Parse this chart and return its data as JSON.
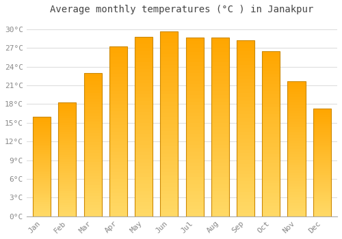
{
  "title": "Average monthly temperatures (°C ) in Janakpur",
  "months": [
    "Jan",
    "Feb",
    "Mar",
    "Apr",
    "May",
    "Jun",
    "Jul",
    "Aug",
    "Sep",
    "Oct",
    "Nov",
    "Dec"
  ],
  "values": [
    16.0,
    18.3,
    23.0,
    27.2,
    28.8,
    29.6,
    28.7,
    28.7,
    28.2,
    26.5,
    21.7,
    17.3
  ],
  "bar_color_main": "#FFA500",
  "bar_color_light": "#FFD966",
  "bar_edge_color": "#CC8800",
  "background_color": "#FFFFFF",
  "grid_color": "#DDDDDD",
  "ytick_values": [
    0,
    3,
    6,
    9,
    12,
    15,
    18,
    21,
    24,
    27,
    30
  ],
  "ylim": [
    0,
    31.5
  ],
  "title_fontsize": 10,
  "tick_fontsize": 8,
  "title_color": "#444444",
  "tick_color": "#888888",
  "bar_width": 0.7
}
